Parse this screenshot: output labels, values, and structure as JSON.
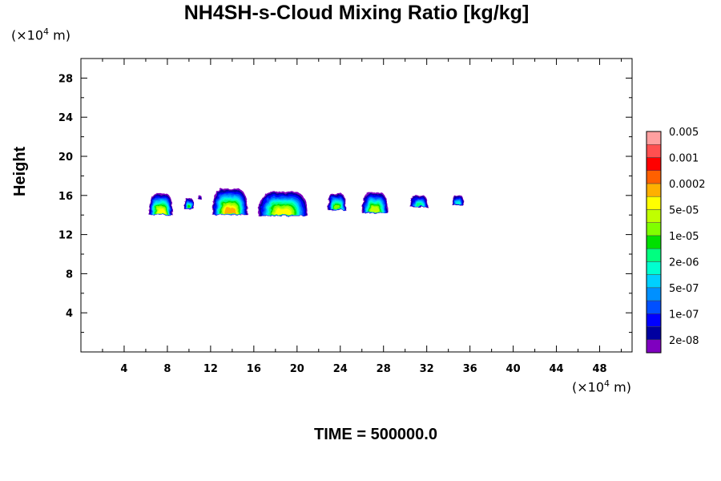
{
  "chart_data": {
    "type": "heatmap",
    "title": "NH4SH-s-Cloud Mixing Ratio [kg/kg]",
    "ylabel": "Height",
    "xlabel": "",
    "x_unit": "(×10",
    "x_unit_exp": "4",
    "x_unit_tail": " m)",
    "y_unit": "(×10",
    "y_unit_exp": "4",
    "y_unit_tail": " m)",
    "footer": "TIME = 500000.0",
    "xlim": [
      0,
      51
    ],
    "ylim": [
      0,
      30
    ],
    "x_ticks": [
      "4",
      "8",
      "12",
      "16",
      "20",
      "24",
      "28",
      "32",
      "36",
      "40",
      "44",
      "48"
    ],
    "y_ticks": [
      "4",
      "8",
      "12",
      "16",
      "20",
      "24",
      "28"
    ],
    "grid": false,
    "legend_position": "right",
    "colorbar": {
      "colors": [
        "#7f00bf",
        "#0000a0",
        "#0000ff",
        "#0050ff",
        "#0090ff",
        "#00d0ff",
        "#00ffd0",
        "#00ff80",
        "#00e000",
        "#80ff00",
        "#c0ff00",
        "#ffff00",
        "#ffb000",
        "#ff6000",
        "#ff0000",
        "#ff5050",
        "#ffa0a0"
      ],
      "labels": [
        "2e-08",
        "1e-07",
        "5e-07",
        "2e-06",
        "1e-05",
        "5e-05",
        "0.0002",
        "0.001",
        "0.005"
      ]
    },
    "clouds": [
      {
        "x": 7.4,
        "base": 14.0,
        "top": 16.2,
        "width": 2.2,
        "peak_level": 12
      },
      {
        "x": 10.0,
        "base": 14.6,
        "top": 15.7,
        "width": 0.9,
        "peak_level": 9
      },
      {
        "x": 11.0,
        "base": 15.6,
        "top": 16.0,
        "width": 0.3,
        "peak_level": 2
      },
      {
        "x": 13.8,
        "base": 14.0,
        "top": 16.7,
        "width": 3.3,
        "peak_level": 13
      },
      {
        "x": 18.7,
        "base": 13.9,
        "top": 16.4,
        "width": 4.6,
        "peak_level": 12
      },
      {
        "x": 23.7,
        "base": 14.5,
        "top": 16.2,
        "width": 1.7,
        "peak_level": 10
      },
      {
        "x": 27.2,
        "base": 14.2,
        "top": 16.3,
        "width": 2.4,
        "peak_level": 11
      },
      {
        "x": 31.3,
        "base": 14.8,
        "top": 16.0,
        "width": 1.6,
        "peak_level": 8
      },
      {
        "x": 34.9,
        "base": 15.0,
        "top": 16.0,
        "width": 1.1,
        "peak_level": 7
      }
    ]
  }
}
